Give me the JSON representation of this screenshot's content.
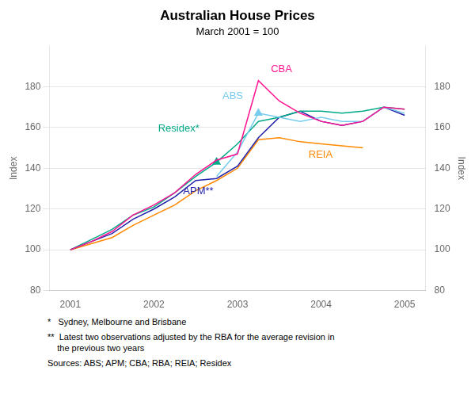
{
  "chart_data": {
    "type": "line",
    "title": "Australian House Prices",
    "subtitle": "March 2001 = 100",
    "ylabel": "Index",
    "y2label": "Index",
    "xlim": [
      2000.75,
      2005.25
    ],
    "xticks": [
      2001,
      2002,
      2003,
      2004,
      2005
    ],
    "ylim": [
      80,
      200
    ],
    "yticks": [
      80,
      100,
      120,
      140,
      160,
      180
    ],
    "y2lim": [
      80,
      200
    ],
    "y2ticks": [
      80,
      100,
      120,
      140,
      160,
      180
    ],
    "grid": "y",
    "series": [
      {
        "name": "CBA",
        "color": "#FF1493",
        "x": [
          2001.0,
          2001.25,
          2001.5,
          2001.75,
          2002.0,
          2002.25,
          2002.5,
          2002.75,
          2003.0,
          2003.25,
          2003.5,
          2003.75,
          2004.0,
          2004.25,
          2004.5,
          2004.75,
          2005.0
        ],
        "values": [
          100,
          104,
          109,
          117,
          122,
          128,
          137,
          144,
          147,
          183,
          173,
          167,
          163,
          161,
          163,
          170,
          169
        ]
      },
      {
        "name": "ABS",
        "color": "#77CCEE",
        "marker": "triangle",
        "marker_points": [
          2003.25
        ],
        "x": [
          2002.75,
          2003.0,
          2003.25,
          2003.5,
          2003.75,
          2004.0,
          2004.25,
          2004.5,
          2004.75,
          2005.0
        ],
        "values": [
          136,
          148,
          167,
          165,
          163,
          165,
          163,
          163,
          170,
          167
        ]
      },
      {
        "name": "Residex*",
        "color": "#00AA88",
        "marker": "triangle",
        "marker_points": [
          2002.75
        ],
        "x": [
          2001.0,
          2001.25,
          2001.5,
          2001.75,
          2002.0,
          2002.25,
          2002.5,
          2002.75,
          2003.0,
          2003.25,
          2003.5,
          2003.75,
          2004.0,
          2004.25,
          2004.5,
          2004.75,
          2005.0
        ],
        "values": [
          100,
          105,
          110,
          117,
          121,
          128,
          136,
          143,
          152,
          163,
          165,
          168,
          168,
          167,
          168,
          170,
          169
        ]
      },
      {
        "name": "APM**",
        "color": "#2222AA",
        "x": [
          2001.0,
          2001.25,
          2001.5,
          2001.75,
          2002.0,
          2002.25,
          2002.5,
          2002.75,
          2003.0,
          2003.25,
          2003.5,
          2003.75,
          2004.0,
          2004.25,
          2004.5,
          2004.75,
          2005.0
        ],
        "values": [
          100,
          104,
          108,
          115,
          120,
          126,
          134,
          135,
          141,
          155,
          165,
          168,
          163,
          161,
          163,
          170,
          166
        ]
      },
      {
        "name": "REIA",
        "color": "#FF8800",
        "x": [
          2001.0,
          2001.25,
          2001.5,
          2001.75,
          2002.0,
          2002.25,
          2002.5,
          2002.75,
          2003.0,
          2003.25,
          2003.5,
          2003.75,
          2004.0,
          2004.25,
          2004.5
        ],
        "values": [
          100,
          103,
          106,
          112,
          117,
          122,
          129,
          134,
          140,
          154,
          155,
          153,
          152,
          151,
          150
        ]
      }
    ],
    "annotations": [
      {
        "text": "CBA",
        "x": 2003.4,
        "y": 186,
        "color": "#FF1493"
      },
      {
        "text": "ABS",
        "x": 2002.82,
        "y": 173,
        "color": "#77CCEE"
      },
      {
        "text": "Residex*",
        "x": 2002.05,
        "y": 157,
        "color": "#00AA88"
      },
      {
        "text": "APM**",
        "x": 2002.35,
        "y": 126,
        "color": "#2222AA"
      },
      {
        "text": "REIA",
        "x": 2003.85,
        "y": 144,
        "color": "#FF8800"
      }
    ],
    "footnotes": [
      "*   Sydney, Melbourne and Brisbane",
      "**  Latest two observations adjusted by the RBA for the average revision in\n    the previous two years",
      "Sources: ABS; APM; CBA; RBA; REIA; Residex"
    ]
  }
}
